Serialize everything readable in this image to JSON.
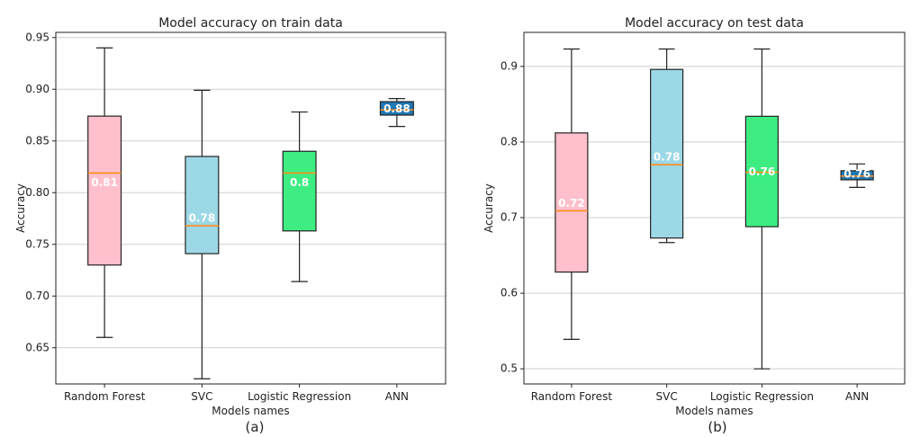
{
  "chart_data": [
    {
      "type": "box",
      "title": "Model accuracy on train data",
      "xlabel": "Models names",
      "ylabel": "Accuracy",
      "caption": "(a)",
      "categories": [
        "Random Forest",
        "SVC",
        "Logistic Regression",
        "ANN"
      ],
      "ylim": [
        0.615,
        0.955
      ],
      "yticks": [
        0.65,
        0.7,
        0.75,
        0.8,
        0.85,
        0.9,
        0.95
      ],
      "ytick_labels": [
        "0.65",
        "0.70",
        "0.75",
        "0.80",
        "0.85",
        "0.90",
        "0.95"
      ],
      "grid": "horizontal",
      "boxes": [
        {
          "category": "Random Forest",
          "whisker_low": 0.66,
          "q1": 0.73,
          "median": 0.819,
          "q3": 0.874,
          "whisker_high": 0.94,
          "label": "0.81",
          "color": "#ffc0cb"
        },
        {
          "category": "SVC",
          "whisker_low": 0.62,
          "q1": 0.741,
          "median": 0.768,
          "q3": 0.835,
          "whisker_high": 0.899,
          "label": "0.78",
          "color": "#9dd8e6"
        },
        {
          "category": "Logistic Regression",
          "whisker_low": 0.714,
          "q1": 0.763,
          "median": 0.819,
          "q3": 0.84,
          "whisker_high": 0.878,
          "label": "0.8",
          "color": "#3ded82"
        },
        {
          "category": "ANN",
          "whisker_low": 0.864,
          "q1": 0.875,
          "median": 0.88,
          "q3": 0.888,
          "whisker_high": 0.891,
          "label": "0.88",
          "color": "#1f77b4"
        }
      ],
      "median_color": "#ff8c1a"
    },
    {
      "type": "box",
      "title": "Model accuracy on test data",
      "xlabel": "Models names",
      "ylabel": "Accuracy",
      "caption": "(b)",
      "categories": [
        "Random Forest",
        "SVC",
        "Logistic Regression",
        "ANN"
      ],
      "ylim": [
        0.48,
        0.945
      ],
      "yticks": [
        0.5,
        0.6,
        0.7,
        0.8,
        0.9
      ],
      "ytick_labels": [
        "0.5",
        "0.6",
        "0.7",
        "0.8",
        "0.9"
      ],
      "grid": "horizontal",
      "boxes": [
        {
          "category": "Random Forest",
          "whisker_low": 0.539,
          "q1": 0.628,
          "median": 0.709,
          "q3": 0.812,
          "whisker_high": 0.923,
          "label": "0.72",
          "color": "#ffc0cb"
        },
        {
          "category": "SVC",
          "whisker_low": 0.667,
          "q1": 0.673,
          "median": 0.77,
          "q3": 0.896,
          "whisker_high": 0.923,
          "label": "0.78",
          "color": "#9dd8e6"
        },
        {
          "category": "Logistic Regression",
          "whisker_low": 0.5,
          "q1": 0.688,
          "median": 0.76,
          "q3": 0.834,
          "whisker_high": 0.923,
          "label": "0.76",
          "color": "#3ded82"
        },
        {
          "category": "ANN",
          "whisker_low": 0.74,
          "q1": 0.75,
          "median": 0.755,
          "q3": 0.762,
          "whisker_high": 0.771,
          "label": "0.76",
          "color": "#1f77b4"
        }
      ],
      "median_color": "#ff8c1a"
    }
  ]
}
